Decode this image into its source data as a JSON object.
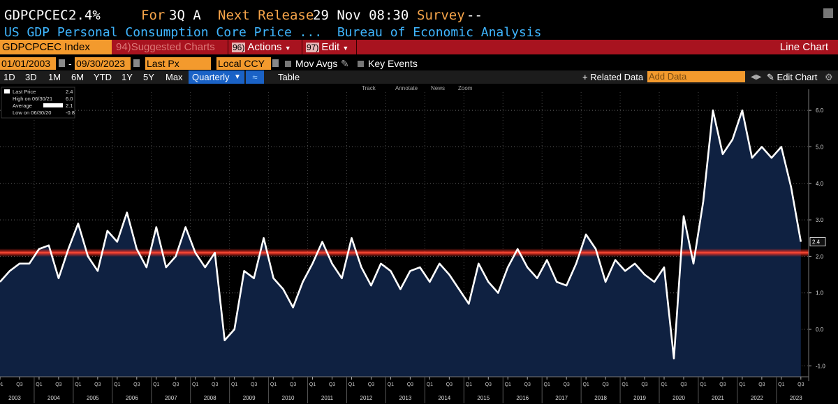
{
  "header": {
    "ticker": "GDPCPCEC",
    "value": "2.4%",
    "for_label": "For",
    "period": "3Q A",
    "next_release_label": "Next Release",
    "next_release": "29 Nov 08:30",
    "survey_label": "Survey",
    "survey_value": "--",
    "description": "US GDP Personal Consumption Core Price ...",
    "source": "Bureau of Economic Analysis"
  },
  "toolbar": {
    "security": "GDPCPCEC Index",
    "suggested_num": "94)",
    "suggested": "Suggested Charts",
    "actions_num": "96)",
    "actions": "Actions",
    "edit_num": "97)",
    "edit": "Edit",
    "chart_type": "Line Chart"
  },
  "range": {
    "start": "01/01/2003",
    "dash": "-",
    "end": "09/30/2023",
    "field": "Last Px",
    "currency": "Local CCY",
    "mov_avgs": "Mov Avgs",
    "key_events": "Key Events"
  },
  "periods": {
    "buttons": [
      "1D",
      "3D",
      "1M",
      "6M",
      "YTD",
      "1Y",
      "5Y",
      "Max"
    ],
    "frequency": "Quarterly",
    "table": "Table",
    "related": "+ Related Data",
    "add_data_placeholder": "Add Data",
    "edit_chart": "Edit Chart"
  },
  "chart_tools": {
    "track": "Track",
    "annotate": "Annotate",
    "news": "News",
    "zoom": "Zoom"
  },
  "legend": {
    "last_label": "Last Price",
    "last_value": "2.4",
    "high_label": "High on 06/30/21",
    "high_value": "6.0",
    "avg_label": "Average",
    "avg_value": "2.1",
    "low_label": "Low on 06/30/20",
    "low_value": "-0.8"
  },
  "colors": {
    "line": "#ffffff",
    "area": "#0d1f3d",
    "average": "#e02a1f",
    "accent": "#f39a2d",
    "bar": "#a8131f"
  },
  "chart_data": {
    "type": "area",
    "title": "GDPCPCEC Index",
    "x_start": "2003 Q1",
    "frequency": "quarterly",
    "ylim": [
      -1.3,
      6.5
    ],
    "yticks": [
      -1.0,
      0.0,
      1.0,
      2.0,
      3.0,
      4.0,
      5.0,
      6.0
    ],
    "ytick_labels": [
      "-1.0",
      "0.0",
      "1.0",
      "2.0",
      "3.0",
      "4.0",
      "5.0",
      "6.0"
    ],
    "average": 2.1,
    "last_value": 2.4,
    "last_label": "2.4",
    "values": [
      1.3,
      1.6,
      1.8,
      1.8,
      2.2,
      2.3,
      1.4,
      2.2,
      2.9,
      2.0,
      1.6,
      2.7,
      2.4,
      3.2,
      2.2,
      1.7,
      2.8,
      1.7,
      2.0,
      2.8,
      2.1,
      1.7,
      2.1,
      -0.3,
      0.0,
      1.6,
      1.4,
      2.5,
      1.4,
      1.1,
      0.6,
      1.3,
      1.8,
      2.4,
      1.8,
      1.4,
      2.5,
      1.7,
      1.2,
      1.8,
      1.6,
      1.1,
      1.6,
      1.7,
      1.3,
      1.8,
      1.5,
      1.1,
      0.7,
      1.8,
      1.3,
      1.0,
      1.7,
      2.2,
      1.7,
      1.4,
      1.9,
      1.3,
      1.2,
      1.8,
      2.6,
      2.2,
      1.3,
      1.9,
      1.6,
      1.8,
      1.5,
      1.3,
      1.7,
      -0.8,
      3.1,
      1.8,
      3.5,
      6.0,
      4.8,
      5.2,
      6.0,
      4.7,
      5.0,
      4.7,
      5.0,
      3.9,
      2.4
    ],
    "years": [
      "2003",
      "2004",
      "2005",
      "2006",
      "2007",
      "2008",
      "2009",
      "2010",
      "2011",
      "2012",
      "2013",
      "2014",
      "2015",
      "2016",
      "2017",
      "2018",
      "2019",
      "2020",
      "2021",
      "2022",
      "2023"
    ],
    "quarter_ticks": [
      "Q1",
      "Q3"
    ]
  }
}
